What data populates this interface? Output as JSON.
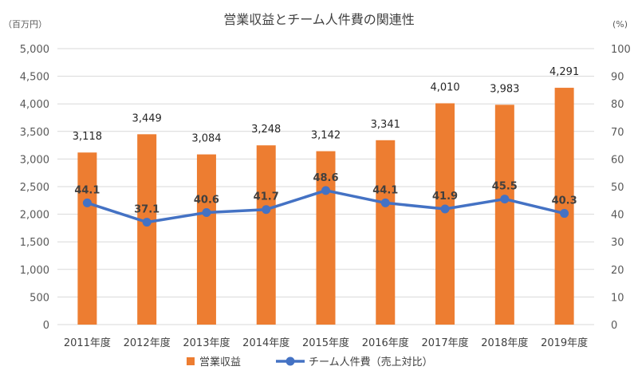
{
  "chart_data": {
    "type": "bar+line",
    "title": "営業収益とチーム人件費の関連性",
    "y_left_unit": "（百万円）",
    "y_right_unit": "(%)",
    "categories": [
      "2011年度",
      "2012年度",
      "2013年度",
      "2014年度",
      "2015年度",
      "2016年度",
      "2017年度",
      "2018年度",
      "2019年度"
    ],
    "series": [
      {
        "name": "営業収益",
        "type": "bar",
        "axis": "left",
        "color": "#ED7D31",
        "values": [
          3118,
          3449,
          3084,
          3248,
          3142,
          3341,
          4010,
          3983,
          4291
        ],
        "labels": [
          "3,118",
          "3,449",
          "3,084",
          "3,248",
          "3,142",
          "3,341",
          "4,010",
          "3,983",
          "4,291"
        ]
      },
      {
        "name": "チーム人件費（売上対比）",
        "type": "line",
        "axis": "right",
        "color": "#4472C4",
        "values": [
          44.1,
          37.1,
          40.6,
          41.7,
          48.6,
          44.1,
          41.9,
          45.5,
          40.3
        ],
        "labels": [
          "44.1",
          "37.1",
          "40.6",
          "41.7",
          "48.6",
          "44.1",
          "41.9",
          "45.5",
          "40.3"
        ]
      }
    ],
    "y_left": {
      "min": 0,
      "max": 5000,
      "ticks": [
        "0",
        "500",
        "1,000",
        "1,500",
        "2,000",
        "2,500",
        "3,000",
        "3,500",
        "4,000",
        "4,500",
        "5,000"
      ]
    },
    "y_right": {
      "min": 0,
      "max": 100,
      "ticks": [
        "0",
        "10",
        "20",
        "30",
        "40",
        "50",
        "60",
        "70",
        "80",
        "90",
        "100"
      ]
    },
    "grid": true,
    "legend_position": "bottom"
  }
}
